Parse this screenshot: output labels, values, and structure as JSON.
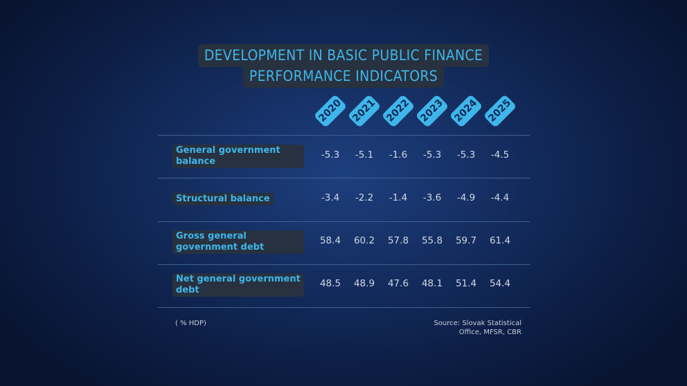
{
  "title": {
    "line1": "DEVELOPMENT IN BASIC PUBLIC FINANCE",
    "line2": "PERFORMANCE INDICATORS"
  },
  "chart_data": {
    "type": "table",
    "title": "DEVELOPMENT IN BASIC PUBLIC FINANCE PERFORMANCE INDICATORS",
    "columns": [
      "2020",
      "2021",
      "2022",
      "2023",
      "2024",
      "2025"
    ],
    "rows": [
      {
        "label": "General government balance",
        "values": [
          "-5.3",
          "-5.1",
          "-1.6",
          "-5.3",
          "-5.3",
          "-4.5"
        ]
      },
      {
        "label": "Structural balance",
        "values": [
          "-3.4",
          "-2.2",
          "-1.4",
          "-3.6",
          "-4.9",
          "-4.4"
        ]
      },
      {
        "label": "Gross general government debt",
        "values": [
          "58.4",
          "60.2",
          "57.8",
          "55.8",
          "59.7",
          "61.4"
        ]
      },
      {
        "label": "Net general government debt",
        "values": [
          "48.5",
          "48.9",
          "47.6",
          "48.1",
          "51.4",
          "54.4"
        ]
      }
    ],
    "unit": "( % HDP)"
  },
  "footer": {
    "unit": "( % HDP)",
    "source_line1": "Source: Slovak Statistical",
    "source_line2": "Office, MFSR, CBR"
  },
  "colors": {
    "accent": "#3fb6ea",
    "label_bg": "#27313f",
    "background": "#152f63"
  }
}
